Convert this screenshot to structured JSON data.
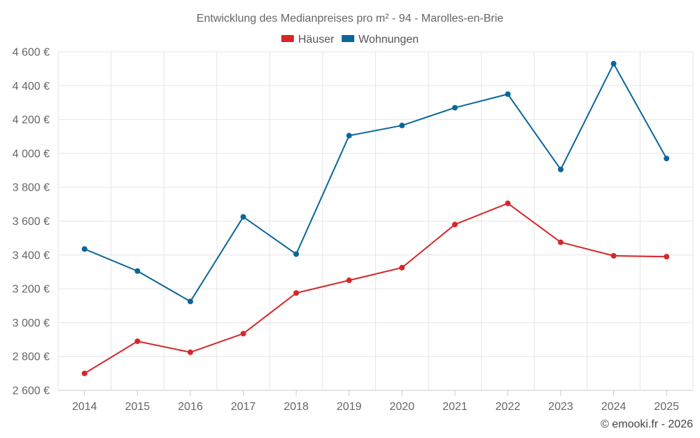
{
  "chart_data": {
    "type": "line",
    "title": "Entwicklung des Medianpreises pro m² - 94 - Marolles-en-Brie",
    "categories": [
      "2014",
      "2015",
      "2016",
      "2017",
      "2018",
      "2019",
      "2020",
      "2021",
      "2022",
      "2023",
      "2024",
      "2025"
    ],
    "series": [
      {
        "name": "Häuser",
        "color": "#d62728",
        "values": [
          2700,
          2890,
          2825,
          2935,
          3175,
          3250,
          3325,
          3580,
          3705,
          3475,
          3395,
          3390
        ]
      },
      {
        "name": "Wohnungen",
        "color": "#0b6699",
        "values": [
          3435,
          3305,
          3125,
          3625,
          3405,
          4105,
          4165,
          4270,
          4350,
          3905,
          4530,
          3970
        ]
      }
    ],
    "ylim": [
      2600,
      4600
    ],
    "yticks": [
      2600,
      2800,
      3000,
      3200,
      3400,
      3600,
      3800,
      4000,
      4200,
      4400,
      4600
    ],
    "yticklabels": [
      "2 600 €",
      "2 800 €",
      "3 000 €",
      "3 200 €",
      "3 400 €",
      "3 600 €",
      "3 800 €",
      "4 000 €",
      "4 200 €",
      "4 400 €",
      "4 600 €"
    ],
    "xlabel": "",
    "ylabel": "",
    "grid": true,
    "legend": "top-center"
  },
  "credit": "© emooki.fr - 2026"
}
